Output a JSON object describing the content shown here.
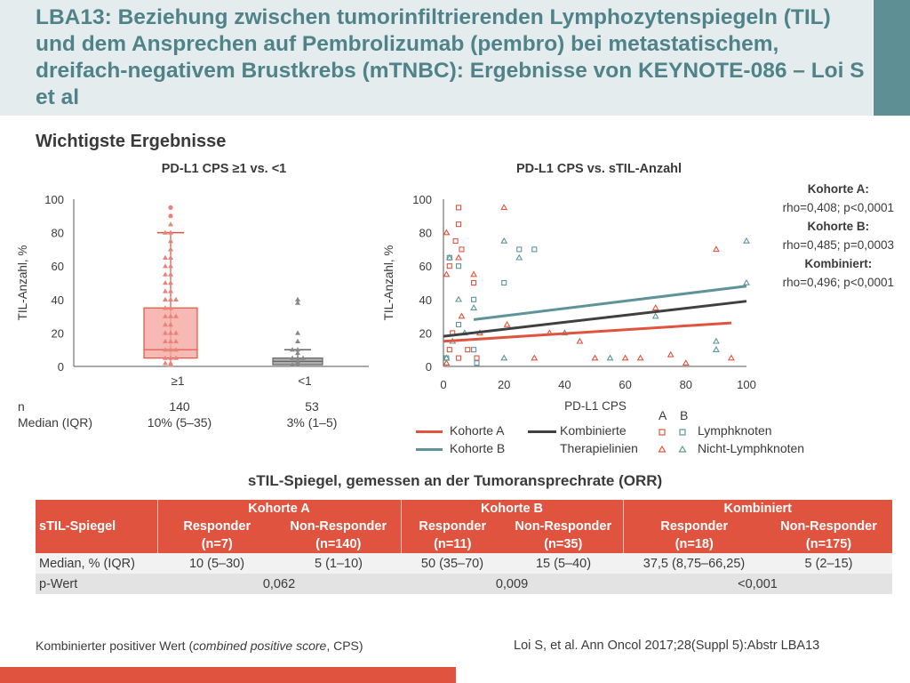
{
  "header": {
    "title": "LBA13: Beziehung zwischen tumorinfiltrierenden Lymphozytenspiegeln (TIL) und dem Ansprechen auf Pembrolizumab (pembro) bei metastatischem, dreifach-negativem Brustkrebs (mTNBC): Ergebnisse von KEYNOTE-086 – Loi S et al"
  },
  "section_title": "Wichtigste Ergebnisse",
  "colors": {
    "cohort_a": "#e0533e",
    "cohort_b": "#5e9499",
    "combined": "#404040",
    "box_fill": "#f5a7a0",
    "box_grey": "#8a8a8a",
    "header_title": "#4f8389"
  },
  "left_panel": {
    "n_label": "n",
    "median_label": "Median (IQR)",
    "groups": [
      {
        "label": "≥1",
        "n": "140",
        "median": "10% (5–35)"
      },
      {
        "label": "<1",
        "n": "53",
        "median": "3% (1–5)"
      }
    ]
  },
  "right_panel": {
    "stats": [
      {
        "label": "Kohorte A:",
        "value": "rho=0,408; p<0,0001"
      },
      {
        "label": "Kohorte B:",
        "value": "rho=0,485; p=0,0003"
      },
      {
        "label": "Kombiniert:",
        "value": "rho=0,496; p<0,0001"
      }
    ],
    "legend": {
      "cohort_a": "Kohorte A",
      "cohort_b": "Kohorte B",
      "combined_line1": "Kombinierte",
      "combined_line2": "Therapielinien",
      "header_a": "A",
      "header_b": "B",
      "lymph": "Lymphknoten",
      "non_lymph": "Nicht-Lymphknoten"
    }
  },
  "chart_data": [
    {
      "type": "box",
      "title": "PD-L1 CPS ≥1 vs. <1",
      "xlabel": "",
      "ylabel": "TIL-Anzahl, %",
      "ylim": [
        0,
        100
      ],
      "yticks": [
        0,
        20,
        40,
        60,
        80,
        100
      ],
      "categories": [
        "≥1",
        "<1"
      ],
      "boxes": [
        {
          "name": "≥1",
          "whisker_low": 0,
          "q1": 5,
          "median": 10,
          "q3": 35,
          "whisker_high": 80,
          "fill": "#f5a7a0",
          "stroke": "#e0533e"
        },
        {
          "name": "<1",
          "whisker_low": 0,
          "q1": 1,
          "median": 3,
          "q3": 5,
          "whisker_high": 10,
          "fill": "#9a9a9a",
          "stroke": "#666666"
        }
      ],
      "points": [
        {
          "group": "≥1",
          "values": [
            95,
            90,
            85,
            80,
            80,
            75,
            70,
            65,
            65,
            60,
            60,
            55,
            55,
            50,
            50,
            45,
            45,
            40,
            40,
            40,
            35,
            35,
            30,
            30,
            30,
            25,
            25,
            20,
            20,
            20,
            15,
            15,
            15,
            10,
            10,
            10,
            5,
            5,
            5,
            2,
            2,
            1
          ]
        },
        {
          "group": "<1",
          "values": [
            40,
            38,
            20,
            15,
            10,
            10,
            8,
            5,
            5,
            5,
            3,
            2,
            1,
            1
          ]
        }
      ]
    },
    {
      "type": "scatter",
      "title": "PD-L1 CPS vs. sTIL-Anzahl",
      "xlabel": "PD-L1 CPS",
      "ylabel": "TIL-Anzahl, %",
      "xlim": [
        0,
        100
      ],
      "ylim": [
        0,
        100
      ],
      "xticks": [
        0,
        20,
        40,
        60,
        80,
        100
      ],
      "yticks": [
        0,
        20,
        40,
        60,
        80,
        100
      ],
      "series": [
        {
          "name": "Kohorte A",
          "marker": "square",
          "x": [
            5,
            5,
            4,
            6,
            10,
            2,
            3,
            2,
            5,
            8,
            11
          ],
          "y": [
            95,
            85,
            75,
            70,
            50,
            60,
            20,
            10,
            5,
            10,
            5
          ]
        },
        {
          "name": "Kohorte A",
          "marker": "triangle",
          "x": [
            1,
            1,
            5,
            10,
            20,
            21,
            6,
            12,
            30,
            35,
            45,
            50,
            60,
            65,
            70,
            75,
            90,
            95,
            80,
            1
          ],
          "y": [
            80,
            55,
            65,
            55,
            95,
            25,
            30,
            20,
            5,
            20,
            15,
            5,
            5,
            5,
            35,
            7,
            70,
            5,
            2,
            2
          ]
        },
        {
          "name": "Kohorte B",
          "marker": "square",
          "x": [
            2,
            5,
            10,
            20,
            25,
            30,
            5,
            10,
            1,
            11
          ],
          "y": [
            65,
            60,
            40,
            50,
            70,
            70,
            25,
            10,
            5,
            2
          ]
        },
        {
          "name": "Kohorte B",
          "marker": "triangle",
          "x": [
            2,
            5,
            10,
            20,
            25,
            3,
            7,
            20,
            40,
            55,
            70,
            90,
            100,
            100,
            90,
            1
          ],
          "y": [
            65,
            40,
            35,
            75,
            65,
            15,
            20,
            5,
            20,
            5,
            30,
            15,
            75,
            50,
            10,
            5
          ]
        }
      ],
      "regression_lines": [
        {
          "name": "Kohorte A",
          "x": [
            0,
            95
          ],
          "y": [
            15,
            26
          ]
        },
        {
          "name": "Kohorte B",
          "x": [
            10,
            100
          ],
          "y": [
            28,
            48
          ]
        },
        {
          "name": "Kombinierte Therapielinien",
          "x": [
            0,
            100
          ],
          "y": [
            18,
            39
          ]
        }
      ]
    }
  ],
  "table": {
    "title": "sTIL-Spiegel, gemessen an der Tumoransprechrate (ORR)",
    "row_header": "sTIL-Spiegel",
    "cohorts": [
      {
        "name": "Kohorte A",
        "responder": "Responder",
        "responder_n": "(n=7)",
        "non_responder": "Non-Responder",
        "non_responder_n": "(n=140)"
      },
      {
        "name": "Kohorte B",
        "responder": "Responder",
        "responder_n": "(n=11)",
        "non_responder": "Non-Responder",
        "non_responder_n": "(n=35)"
      },
      {
        "name": "Kombiniert",
        "responder": "Responder",
        "responder_n": "(n=18)",
        "non_responder": "Non-Responder",
        "non_responder_n": "(n=175)"
      }
    ],
    "rows": [
      {
        "label": "Median, % (IQR)",
        "values": [
          "10 (5–30)",
          "5 (1–10)",
          "50 (35–70)",
          "15 (5–40)",
          "37,5 (8,75–66,25)",
          "5 (2–15)"
        ]
      },
      {
        "label": "p-Wert",
        "values": [
          "0,062",
          "0,009",
          "<0,001"
        ]
      }
    ]
  },
  "footnote_before": "Kombinierter positiver Wert (",
  "footnote_italic": "combined positive score",
  "footnote_after": ", CPS)",
  "reference": "Loi S, et al. Ann Oncol 2017;28(Suppl 5):Abstr LBA13"
}
